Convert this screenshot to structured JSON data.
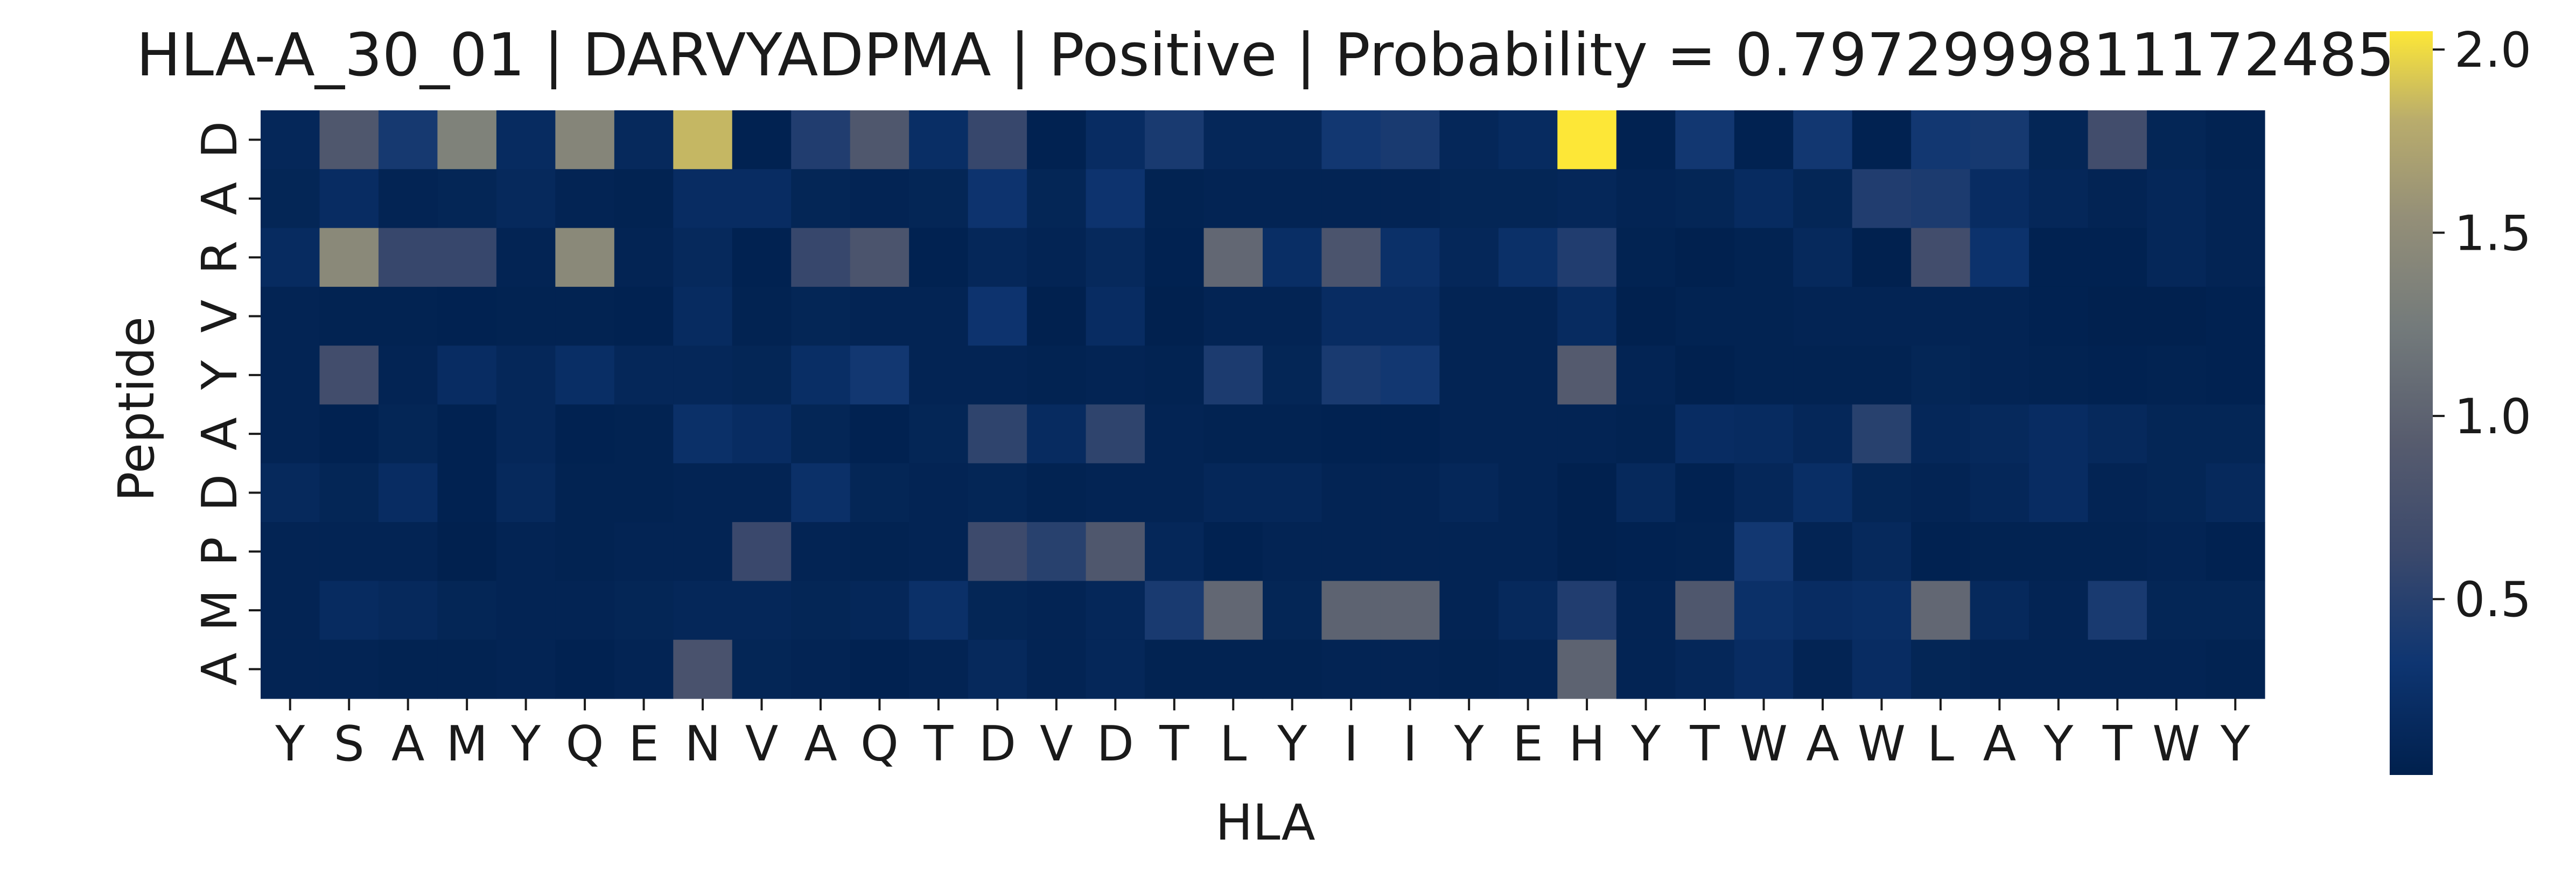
{
  "chart_data": {
    "type": "heatmap",
    "title": "HLA-A_30_01 | DARVYADPMA | Positive | Probability = 0.7972999811172485",
    "xlabel": "HLA",
    "ylabel": "Peptide",
    "x_categories": [
      "Y",
      "S",
      "A",
      "M",
      "Y",
      "Q",
      "E",
      "N",
      "V",
      "A",
      "Q",
      "T",
      "D",
      "V",
      "D",
      "T",
      "L",
      "Y",
      "I",
      "I",
      "Y",
      "E",
      "H",
      "Y",
      "T",
      "W",
      "A",
      "W",
      "L",
      "A",
      "Y",
      "T",
      "W",
      "Y"
    ],
    "y_categories": [
      "D",
      "A",
      "R",
      "V",
      "Y",
      "A",
      "D",
      "P",
      "M",
      "A"
    ],
    "colormap": "cividis",
    "colorbar": {
      "min": 0.02,
      "max": 2.05,
      "ticks": [
        0.5,
        1.0,
        1.5,
        2.0
      ]
    },
    "values": [
      [
        0.12,
        0.85,
        0.38,
        1.35,
        0.18,
        1.4,
        0.15,
        1.85,
        0.05,
        0.45,
        0.85,
        0.22,
        0.6,
        0.05,
        0.2,
        0.4,
        0.12,
        0.12,
        0.35,
        0.4,
        0.12,
        0.18,
        2.05,
        0.05,
        0.35,
        0.05,
        0.35,
        0.05,
        0.35,
        0.38,
        0.1,
        0.7,
        0.1,
        0.06
      ],
      [
        0.1,
        0.2,
        0.08,
        0.1,
        0.15,
        0.08,
        0.06,
        0.2,
        0.2,
        0.1,
        0.08,
        0.1,
        0.3,
        0.1,
        0.3,
        0.06,
        0.08,
        0.08,
        0.08,
        0.08,
        0.1,
        0.1,
        0.12,
        0.08,
        0.1,
        0.18,
        0.1,
        0.45,
        0.42,
        0.2,
        0.12,
        0.08,
        0.12,
        0.08
      ],
      [
        0.18,
        1.45,
        0.6,
        0.6,
        0.08,
        1.45,
        0.08,
        0.15,
        0.05,
        0.6,
        0.8,
        0.05,
        0.12,
        0.08,
        0.15,
        0.05,
        1.05,
        0.22,
        0.8,
        0.25,
        0.12,
        0.25,
        0.45,
        0.06,
        0.04,
        0.06,
        0.15,
        0.04,
        0.7,
        0.28,
        0.05,
        0.05,
        0.12,
        0.08
      ],
      [
        0.08,
        0.06,
        0.06,
        0.05,
        0.06,
        0.06,
        0.05,
        0.18,
        0.06,
        0.1,
        0.08,
        0.08,
        0.3,
        0.04,
        0.2,
        0.04,
        0.08,
        0.08,
        0.2,
        0.2,
        0.08,
        0.08,
        0.18,
        0.04,
        0.06,
        0.06,
        0.08,
        0.08,
        0.08,
        0.08,
        0.05,
        0.04,
        0.04,
        0.05
      ],
      [
        0.08,
        0.7,
        0.08,
        0.2,
        0.12,
        0.22,
        0.12,
        0.12,
        0.1,
        0.22,
        0.35,
        0.08,
        0.08,
        0.06,
        0.08,
        0.06,
        0.42,
        0.1,
        0.4,
        0.35,
        0.08,
        0.08,
        0.9,
        0.08,
        0.04,
        0.06,
        0.06,
        0.06,
        0.1,
        0.08,
        0.06,
        0.05,
        0.06,
        0.05
      ],
      [
        0.08,
        0.05,
        0.1,
        0.05,
        0.12,
        0.05,
        0.06,
        0.25,
        0.2,
        0.1,
        0.05,
        0.1,
        0.55,
        0.18,
        0.55,
        0.08,
        0.06,
        0.06,
        0.05,
        0.05,
        0.08,
        0.08,
        0.08,
        0.06,
        0.2,
        0.18,
        0.12,
        0.5,
        0.12,
        0.15,
        0.2,
        0.15,
        0.1,
        0.1
      ],
      [
        0.15,
        0.1,
        0.2,
        0.05,
        0.15,
        0.06,
        0.06,
        0.08,
        0.08,
        0.25,
        0.1,
        0.08,
        0.1,
        0.06,
        0.08,
        0.08,
        0.12,
        0.12,
        0.08,
        0.08,
        0.12,
        0.08,
        0.04,
        0.15,
        0.05,
        0.12,
        0.22,
        0.1,
        0.08,
        0.12,
        0.2,
        0.08,
        0.1,
        0.15
      ],
      [
        0.08,
        0.08,
        0.08,
        0.04,
        0.08,
        0.06,
        0.08,
        0.08,
        0.62,
        0.08,
        0.06,
        0.08,
        0.65,
        0.5,
        0.85,
        0.12,
        0.05,
        0.08,
        0.08,
        0.08,
        0.08,
        0.08,
        0.04,
        0.05,
        0.06,
        0.35,
        0.08,
        0.15,
        0.05,
        0.06,
        0.06,
        0.06,
        0.08,
        0.05
      ],
      [
        0.08,
        0.18,
        0.15,
        0.1,
        0.08,
        0.08,
        0.1,
        0.12,
        0.12,
        0.1,
        0.12,
        0.25,
        0.1,
        0.08,
        0.12,
        0.4,
        1.05,
        0.1,
        1.0,
        1.0,
        0.08,
        0.15,
        0.45,
        0.08,
        0.85,
        0.25,
        0.2,
        0.22,
        1.05,
        0.15,
        0.08,
        0.4,
        0.1,
        0.1
      ],
      [
        0.08,
        0.08,
        0.06,
        0.06,
        0.08,
        0.05,
        0.08,
        0.78,
        0.1,
        0.08,
        0.05,
        0.08,
        0.15,
        0.08,
        0.12,
        0.06,
        0.06,
        0.06,
        0.08,
        0.08,
        0.06,
        0.08,
        1.0,
        0.08,
        0.12,
        0.2,
        0.08,
        0.2,
        0.1,
        0.08,
        0.08,
        0.08,
        0.08,
        0.06
      ]
    ]
  }
}
